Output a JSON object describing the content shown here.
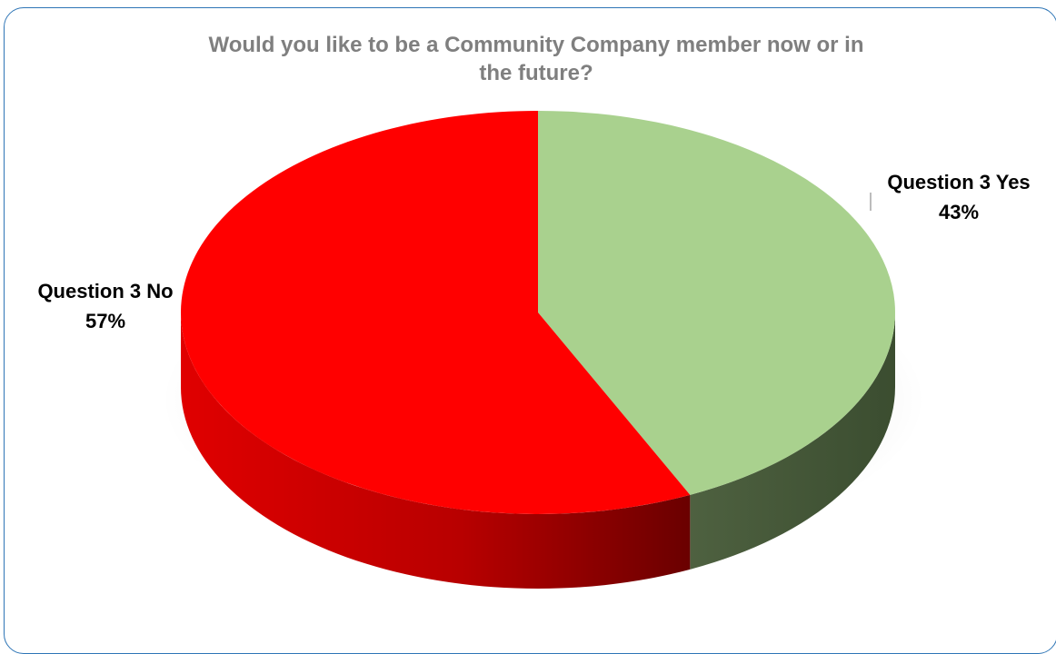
{
  "chart_data": {
    "type": "pie",
    "title_lines": [
      "Would you like to be a Community Company member now or in",
      "the future?"
    ],
    "series": [
      {
        "name": "Question 3 Yes",
        "value": 43,
        "label": "43%",
        "color": "#a9d18e"
      },
      {
        "name": "Question 3 No",
        "value": 57,
        "label": "57%",
        "color": "#ff0000"
      }
    ],
    "three_d": true,
    "legend": "none"
  },
  "colors": {
    "border": "#2e75b6",
    "title": "#7f7f7f"
  }
}
